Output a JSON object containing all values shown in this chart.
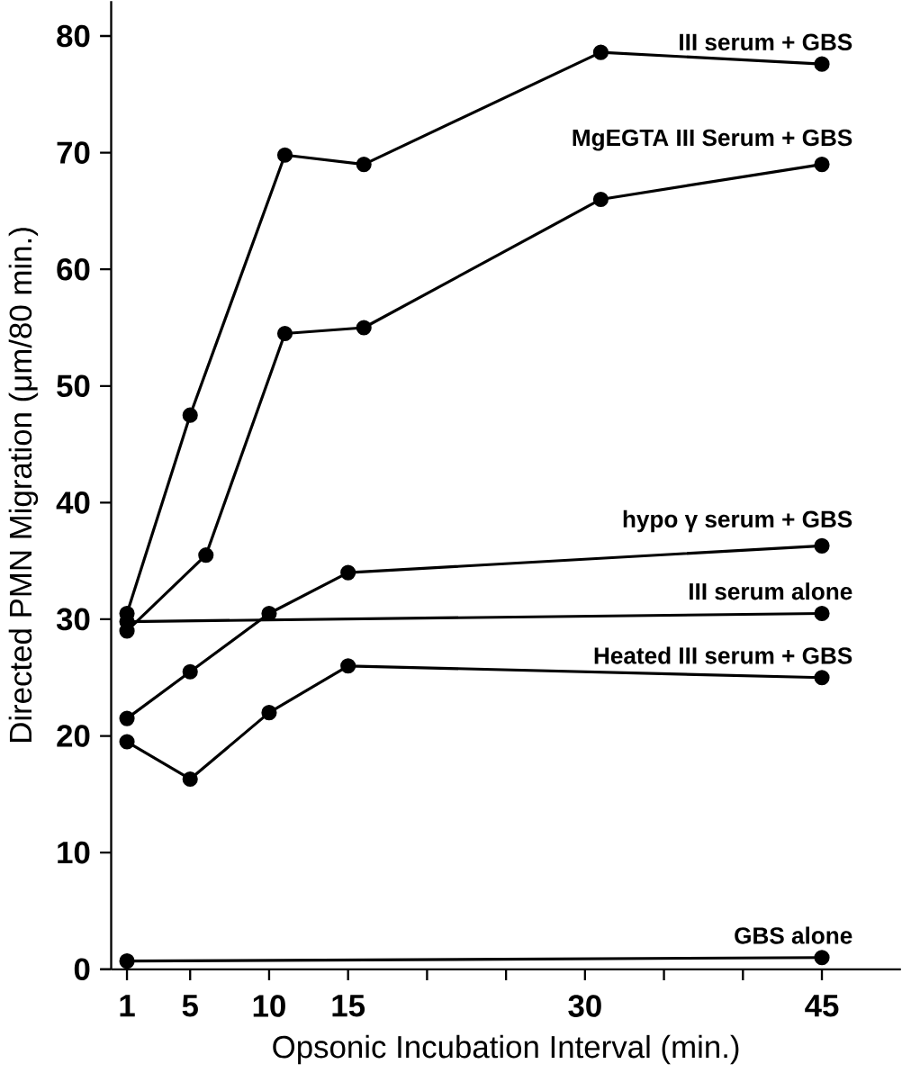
{
  "chart_data": {
    "type": "line",
    "xlabel": "Opsonic Incubation Interval (min.)",
    "ylabel": "Directed PMN Migration (μm/80 min.)",
    "xlim": [
      0,
      50
    ],
    "ylim": [
      0,
      83
    ],
    "xticks": [
      1,
      5,
      10,
      15,
      {
        "value": 20,
        "label": null
      },
      {
        "value": 25,
        "label": null
      },
      30,
      {
        "value": 35,
        "label": null
      },
      {
        "value": 40,
        "label": null
      },
      45
    ],
    "yticks": [
      0,
      10,
      20,
      30,
      40,
      50,
      60,
      70,
      80
    ],
    "grid": false,
    "marker": "circle",
    "line_style": "solid",
    "series": [
      {
        "name": "III serum + GBS",
        "color": "#000000",
        "x": [
          1,
          5,
          11,
          16,
          31,
          45
        ],
        "values": [
          30.5,
          47.5,
          69.8,
          69,
          78.6,
          77.6
        ]
      },
      {
        "name": "MgEGTA  III Serum + GBS",
        "color": "#000000",
        "x": [
          1,
          6,
          11,
          16,
          31,
          45
        ],
        "values": [
          29,
          35.5,
          54.5,
          55,
          66,
          69
        ]
      },
      {
        "name": "hypo γ serum + GBS",
        "color": "#000000",
        "x": [
          1,
          5,
          10,
          15,
          45
        ],
        "values": [
          21.5,
          25.5,
          30.5,
          34,
          36.3
        ]
      },
      {
        "name": "III serum alone",
        "color": "#000000",
        "x": [
          1,
          45
        ],
        "values": [
          29.8,
          30.5
        ]
      },
      {
        "name": "Heated III serum + GBS",
        "color": "#000000",
        "x": [
          1,
          5,
          10,
          15,
          45
        ],
        "values": [
          19.5,
          16.3,
          22,
          26,
          25
        ]
      },
      {
        "name": "GBS alone",
        "color": "#000000",
        "x": [
          1,
          45
        ],
        "values": [
          0.7,
          1
        ]
      }
    ]
  }
}
